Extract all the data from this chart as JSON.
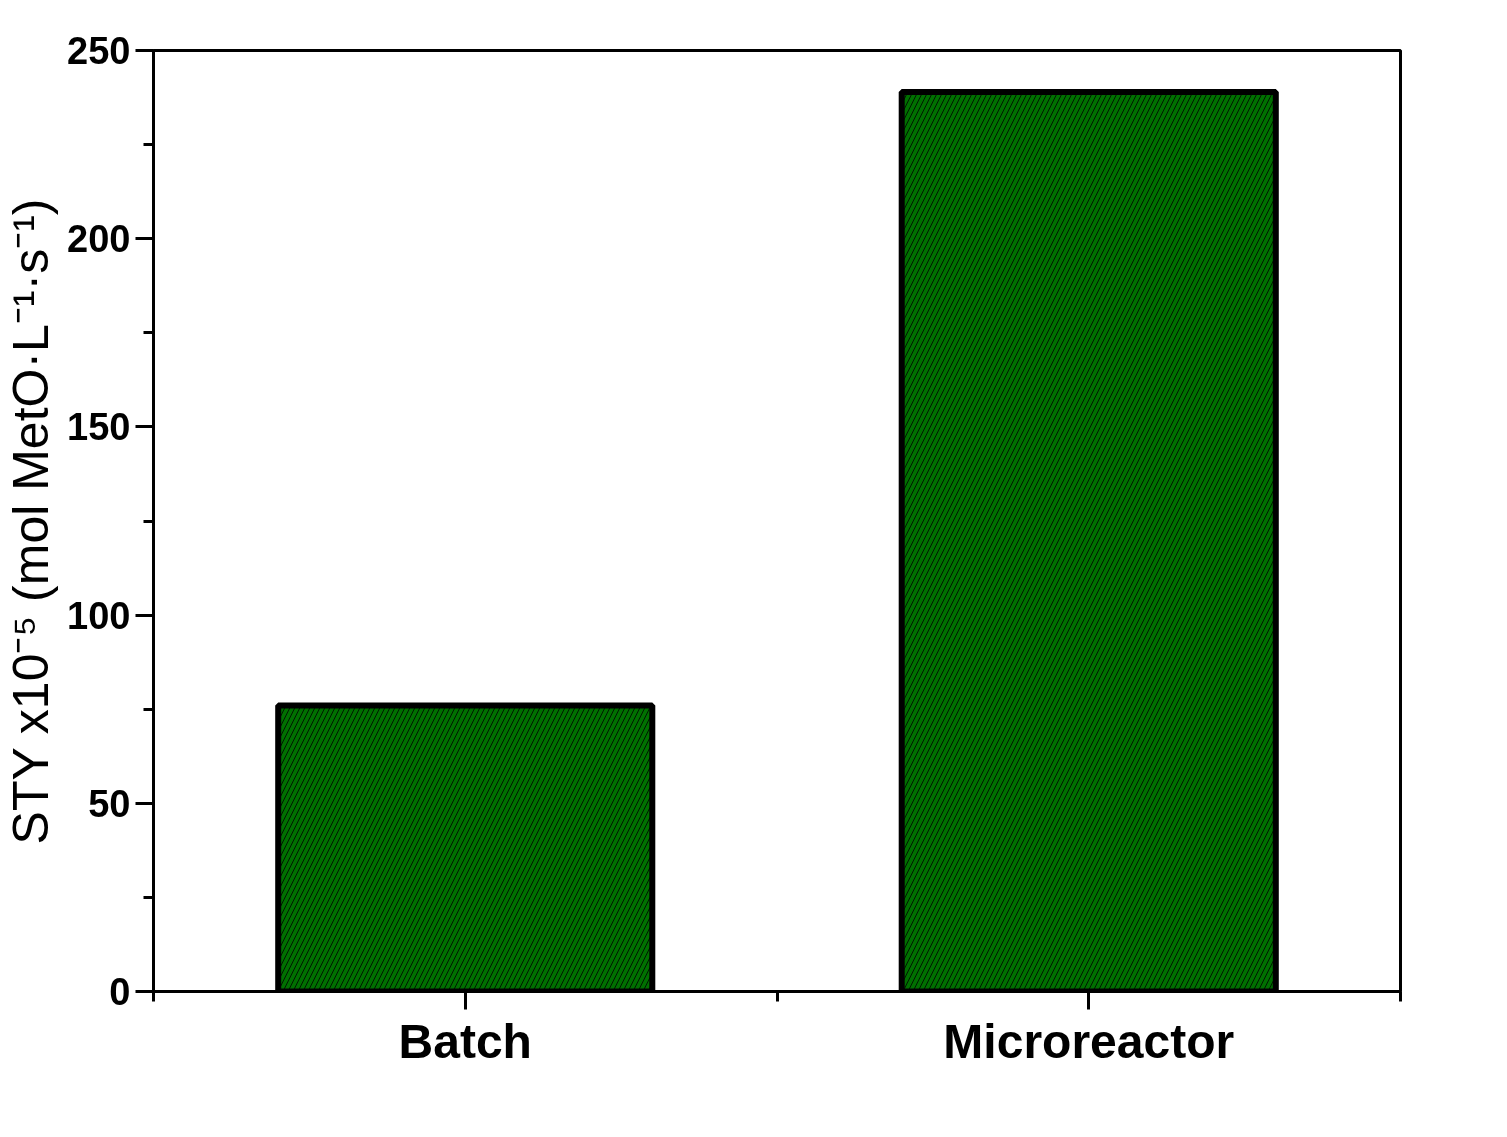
{
  "chart_data": {
    "type": "bar",
    "ylabel": "STY x10⁻⁵ (mol MetO·L⁻¹·s⁻¹)",
    "categories": [
      "Batch",
      "Microreactor"
    ],
    "values": [
      76,
      239
    ],
    "color": "#007000",
    "ylim": [
      0,
      250
    ],
    "yticks": [
      0,
      50,
      100,
      150,
      200,
      250
    ],
    "grid": false
  }
}
